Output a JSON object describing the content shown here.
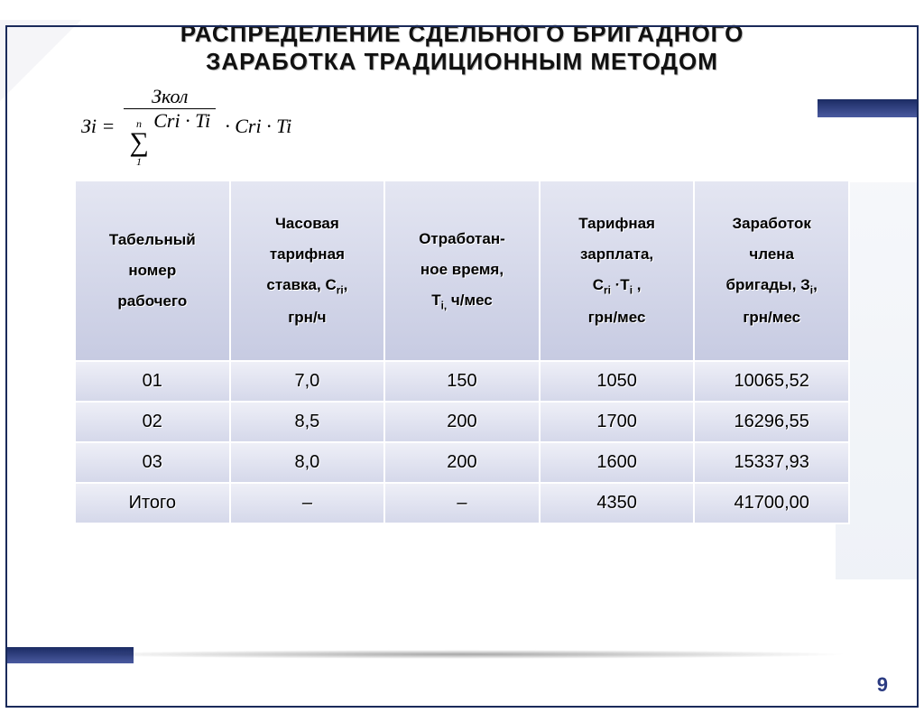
{
  "title": {
    "line1": "РАСПРЕДЕЛЕНИЕ СДЕЛЬНОГО БРИГАДНОГО",
    "line2": "ЗАРАБОТКА ТРАДИЦИОННЫМ МЕТОДОМ"
  },
  "formula": {
    "lhs": "Зi =",
    "numerator": "Зкол",
    "sigma_upper": "n",
    "sigma_lower": "1",
    "denominator_tail": "Cri · Ti",
    "tail": "· Cri · Ti"
  },
  "table": {
    "columns": [
      "Табельный номер рабочего",
      "Часовая тарифная ставка, C_ri, грн/ч",
      "Отработан-ное время, T_i, ч/мес",
      "Тарифная зарплата, C_ri ·T_i , грн/мес",
      "Заработок члена бригады, З_i, грн/мес"
    ],
    "rows": [
      [
        "01",
        "7,0",
        "150",
        "1050",
        "10065,52"
      ],
      [
        "02",
        "8,5",
        "200",
        "1700",
        "16296,55"
      ],
      [
        "03",
        "8,0",
        "200",
        "1600",
        "15337,93"
      ],
      [
        "Итого",
        "–",
        "–",
        "4350",
        "41700,00"
      ]
    ],
    "header_bg_from": "#e4e6f2",
    "header_bg_to": "#c7cbe2",
    "cell_bg_from": "#eeeff7",
    "cell_bg_to": "#d5d8ea",
    "border_color": "#ffffff",
    "header_fontsize": 17,
    "cell_fontsize": 20
  },
  "page_number": "9",
  "accent_color": "#1a2a5a",
  "background_color": "#ffffff"
}
